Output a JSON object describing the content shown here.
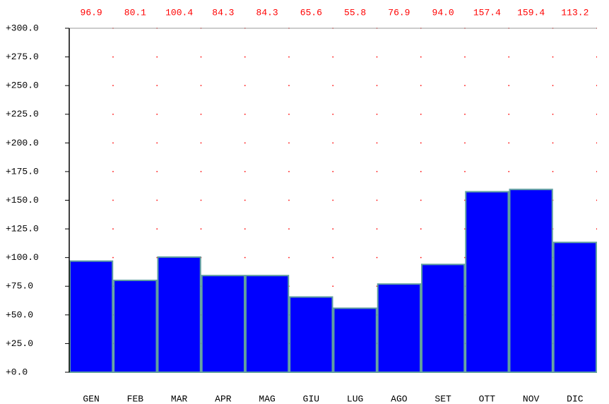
{
  "chart_data": {
    "type": "bar",
    "categories": [
      "GEN",
      "FEB",
      "MAR",
      "APR",
      "MAG",
      "GIU",
      "LUG",
      "AGO",
      "SET",
      "OTT",
      "NOV",
      "DIC"
    ],
    "values": [
      96.9,
      80.1,
      100.4,
      84.3,
      84.3,
      65.6,
      55.8,
      76.9,
      94.0,
      157.4,
      159.4,
      113.2
    ],
    "value_labels": [
      "96.9",
      "80.1",
      "100.4",
      "84.3",
      "84.3",
      "65.6",
      "55.8",
      "76.9",
      "94.0",
      "157.4",
      "159.4",
      "113.2"
    ],
    "color": "#0000ff",
    "ylim": [
      0,
      300
    ],
    "yticks": [
      {
        "value": 0,
        "label": "+0.0"
      },
      {
        "value": 25,
        "label": "+25.0"
      },
      {
        "value": 50,
        "label": "+50.0"
      },
      {
        "value": 75,
        "label": "+75.0"
      },
      {
        "value": 100,
        "label": "+100.0"
      },
      {
        "value": 125,
        "label": "+125.0"
      },
      {
        "value": 150,
        "label": "+150.0"
      },
      {
        "value": 175,
        "label": "+175.0"
      },
      {
        "value": 200,
        "label": "+200.0"
      },
      {
        "value": 225,
        "label": "+225.0"
      },
      {
        "value": 250,
        "label": "+250.0"
      },
      {
        "value": 275,
        "label": "+275.0"
      },
      {
        "value": 300,
        "label": "+300.0"
      }
    ],
    "grid": true
  }
}
